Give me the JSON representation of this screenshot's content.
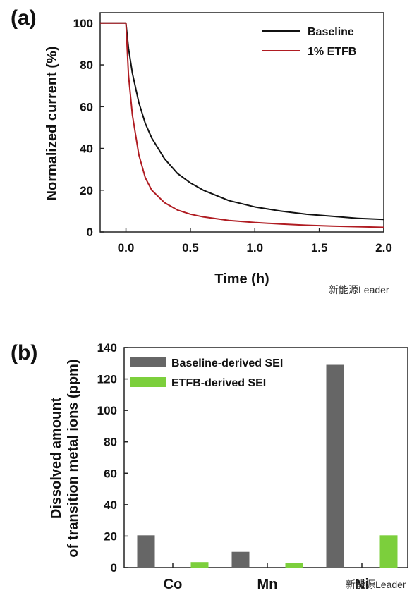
{
  "watermark": "新能源Leader",
  "chart_data": [
    {
      "panel_label": "(a)",
      "type": "line",
      "xlabel": "Time (h)",
      "ylabel": "Normalized current (%)",
      "xlim": [
        -0.2,
        2.0
      ],
      "ylim": [
        0,
        105
      ],
      "xticks": [
        "0.0",
        "0.5",
        "1.0",
        "1.5",
        "2.0"
      ],
      "yticks": [
        "0",
        "20",
        "40",
        "60",
        "80",
        "100"
      ],
      "legend_position": "top-right",
      "series": [
        {
          "name": "Baseline",
          "color": "#111111",
          "x": [
            -0.2,
            -0.05,
            0.0,
            0.02,
            0.05,
            0.1,
            0.15,
            0.2,
            0.3,
            0.4,
            0.5,
            0.6,
            0.8,
            1.0,
            1.2,
            1.4,
            1.6,
            1.8,
            2.0
          ],
          "y": [
            100,
            100,
            100,
            88,
            76,
            62,
            52,
            45,
            35,
            28,
            23.5,
            20,
            15,
            12,
            10,
            8.5,
            7.5,
            6.5,
            6
          ]
        },
        {
          "name": "1% ETFB",
          "color": "#b01c22",
          "x": [
            -0.2,
            -0.05,
            0.0,
            0.02,
            0.05,
            0.1,
            0.15,
            0.2,
            0.3,
            0.4,
            0.5,
            0.6,
            0.8,
            1.0,
            1.2,
            1.4,
            1.6,
            1.8,
            2.0
          ],
          "y": [
            100,
            100,
            100,
            75,
            56,
            37,
            26,
            20,
            14,
            10.5,
            8.5,
            7.2,
            5.5,
            4.5,
            3.8,
            3.2,
            2.8,
            2.5,
            2.2
          ]
        }
      ]
    },
    {
      "panel_label": "(b)",
      "type": "bar",
      "xlabel": "",
      "ylabel_lines": [
        "Dissolved amount",
        "of transition metal ions (ppm)"
      ],
      "ylim": [
        0,
        140
      ],
      "yticks": [
        "0",
        "20",
        "40",
        "60",
        "80",
        "100",
        "120",
        "140"
      ],
      "categories": [
        "Co",
        "Mn",
        "Ni"
      ],
      "legend_position": "top-center",
      "series": [
        {
          "name": "Baseline-derived SEI",
          "color": "#666666",
          "values": [
            20.5,
            10,
            129
          ]
        },
        {
          "name": "ETFB-derived SEI",
          "color": "#7ccf3c",
          "values": [
            3.5,
            3,
            20.5
          ]
        }
      ]
    }
  ]
}
